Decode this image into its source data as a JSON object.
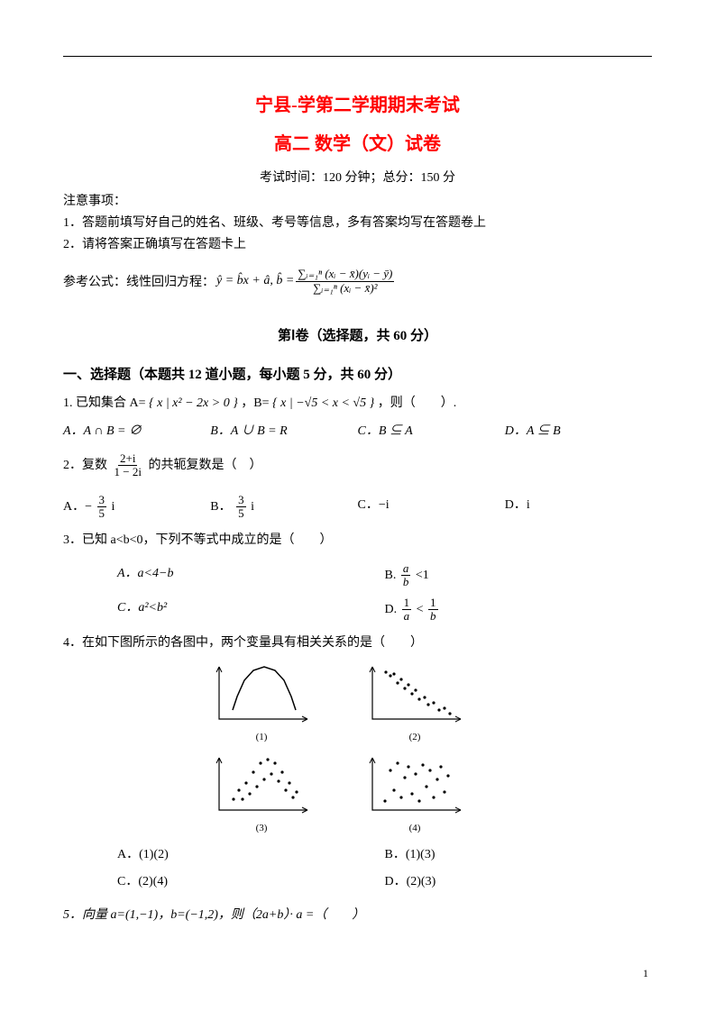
{
  "header": {
    "title": "宁县-学第二学期期末考试",
    "subtitle": "高二   数学（文）试卷",
    "exam_info": "考试时间：120 分钟；总分：150 分",
    "notes_title": "注意事项：",
    "note1": "1．答题前填写好自己的姓名、班级、考号等信息，多有答案均写在答题卷上",
    "note2": "2．请将答案正确填写在答题卡上",
    "formula_label": "参考公式：线性回归方程：",
    "formula_y": "ŷ = b̂x + â, b̂ =",
    "formula_frac_num": "∑ᵢ₌₁ⁿ (xᵢ − x̄)(yᵢ − ȳ)",
    "formula_frac_den": "∑ᵢ₌₁ⁿ (xᵢ − x̄)²"
  },
  "section": {
    "head": "第Ⅰ卷（选择题，共 60 分）",
    "part": "一、选择题（本题共 12 道小题，每小题 5 分，共 60 分）"
  },
  "q1": {
    "stem_a": "1. 已知集合 A=",
    "setA": "{ x | x² − 2x > 0 }",
    "stem_b": "，B=",
    "setB": "{ x | −√5 < x < √5 }",
    "stem_c": "，则（　　）.",
    "A": "A．A ∩ B = ∅",
    "B": "B．A ∪ B = R",
    "C": "C．B ⊆ A",
    "D": "D．A ⊆ B"
  },
  "q2": {
    "stem_a": "2．复数",
    "frac_num": "2+i",
    "frac_den": "1 − 2i",
    "stem_b": "的共轭复数是（　）",
    "A_pre": "A．−",
    "A_num": "3",
    "A_den": "5",
    "A_suf": "i",
    "B_pre": "B．",
    "B_num": "3",
    "B_den": "5",
    "B_suf": "i",
    "C": "C．−i",
    "D": "D．i"
  },
  "q3": {
    "stem": "3．已知 a<b<0，下列不等式中成立的是（　　）",
    "A": "A．a<4−b",
    "B_pre": "B.",
    "B_num": "a",
    "B_den": "b",
    "B_suf": "<1",
    "C": "C．a²<b²",
    "D_pre": "D.",
    "D_num": "1",
    "D_den": "a",
    "D_cmp": "<",
    "D_num2": "1",
    "D_den2": "b"
  },
  "q4": {
    "stem": "4．在如下图所示的各图中，两个变量具有相关关系的是（　　）",
    "caps": {
      "c1": "(1)",
      "c2": "(2)",
      "c3": "(3)",
      "c4": "(4)"
    },
    "A": "A．(1)(2)",
    "B": "B．(1)(3)",
    "C": "C．(2)(4)",
    "D": "D．(2)(3)",
    "charts": {
      "axis_color": "#000000",
      "dot_color": "#000000",
      "width": 110,
      "height": 70,
      "c1": {
        "type": "parabola",
        "points": [
          [
            15,
            10
          ],
          [
            20,
            25
          ],
          [
            28,
            43
          ],
          [
            38,
            54
          ],
          [
            50,
            58
          ],
          [
            62,
            54
          ],
          [
            72,
            43
          ],
          [
            80,
            25
          ],
          [
            85,
            10
          ]
        ]
      },
      "c2": {
        "type": "scatter",
        "points": [
          [
            15,
            52
          ],
          [
            20,
            48
          ],
          [
            24,
            50
          ],
          [
            28,
            40
          ],
          [
            32,
            44
          ],
          [
            36,
            34
          ],
          [
            40,
            38
          ],
          [
            44,
            28
          ],
          [
            48,
            32
          ],
          [
            52,
            22
          ],
          [
            58,
            24
          ],
          [
            62,
            16
          ],
          [
            68,
            18
          ],
          [
            74,
            10
          ],
          [
            80,
            12
          ],
          [
            86,
            6
          ]
        ]
      },
      "c3": {
        "type": "scatter",
        "points": [
          [
            16,
            12
          ],
          [
            22,
            22
          ],
          [
            26,
            12
          ],
          [
            30,
            30
          ],
          [
            34,
            18
          ],
          [
            38,
            42
          ],
          [
            42,
            26
          ],
          [
            46,
            52
          ],
          [
            50,
            34
          ],
          [
            54,
            56
          ],
          [
            58,
            40
          ],
          [
            62,
            52
          ],
          [
            66,
            32
          ],
          [
            70,
            42
          ],
          [
            74,
            22
          ],
          [
            78,
            30
          ],
          [
            82,
            14
          ],
          [
            86,
            20
          ]
        ]
      },
      "c4": {
        "type": "scatter",
        "points": [
          [
            14,
            10
          ],
          [
            20,
            44
          ],
          [
            24,
            22
          ],
          [
            28,
            52
          ],
          [
            32,
            14
          ],
          [
            36,
            36
          ],
          [
            40,
            48
          ],
          [
            44,
            18
          ],
          [
            48,
            40
          ],
          [
            52,
            10
          ],
          [
            56,
            50
          ],
          [
            60,
            26
          ],
          [
            64,
            44
          ],
          [
            68,
            14
          ],
          [
            72,
            34
          ],
          [
            76,
            48
          ],
          [
            80,
            20
          ],
          [
            84,
            38
          ]
        ]
      }
    }
  },
  "q5": {
    "stem": "5．向量 a=(1,−1)，b=(−1,2)，则（2a+b）· a =（　　）"
  },
  "page_num": "1"
}
